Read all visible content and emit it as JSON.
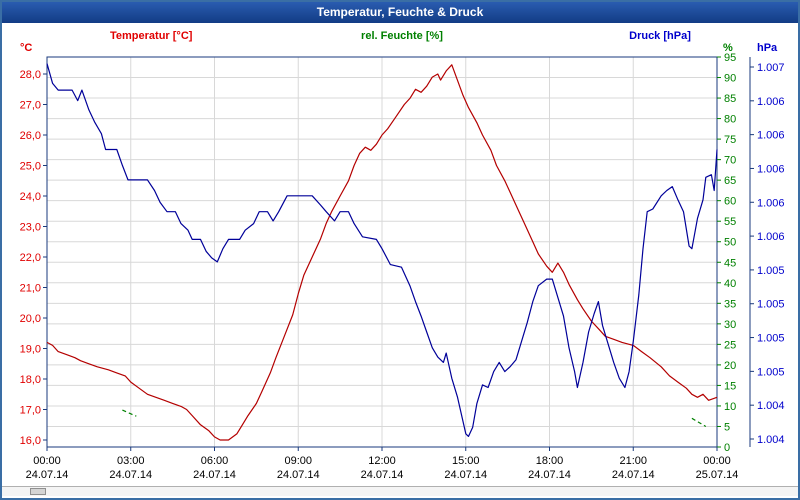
{
  "window": {
    "title": "Temperatur, Feuchte & Druck"
  },
  "header": {
    "temp_axis_label": "Temperatur [°C]",
    "humidity_axis_label": "rel. Feuchte [%]",
    "pressure_axis_label": "Druck [hPa]",
    "temp_unit": "°C",
    "humidity_unit": "%",
    "pressure_unit": "hPa"
  },
  "colors": {
    "temperature": "#b40000",
    "temperature_label": "#e00000",
    "humidity": "#008000",
    "pressure": "#000099",
    "pressure_label": "#0000cc",
    "grid": "#d8d8d8",
    "frame": "#1a3a7c",
    "tick_text": "#000000",
    "title_bar": "#1b4a9e",
    "background": "#ffffff"
  },
  "axes": {
    "x": {
      "tick_hours": [
        0,
        3,
        6,
        9,
        12,
        15,
        18,
        21,
        24
      ],
      "time_labels": [
        "00:00",
        "03:00",
        "06:00",
        "09:00",
        "12:00",
        "15:00",
        "18:00",
        "21:00",
        "00:00"
      ],
      "date_labels": [
        "24.07.14",
        "24.07.14",
        "24.07.14",
        "24.07.14",
        "24.07.14",
        "24.07.14",
        "24.07.14",
        "24.07.14",
        "25.07.14"
      ]
    },
    "temperature": {
      "unit": "°C",
      "min": 16,
      "max": 28,
      "tick_values": [
        28,
        27,
        26,
        25,
        24,
        23,
        22,
        21,
        20,
        19,
        18,
        17,
        16
      ],
      "tick_labels": [
        "28,0",
        "27,0",
        "26,0",
        "25,0",
        "24,0",
        "23,0",
        "22,0",
        "21,0",
        "20,0",
        "19,0",
        "18,0",
        "17,0",
        "16,0"
      ]
    },
    "humidity": {
      "unit": "%",
      "min": 0,
      "max": 95,
      "tick_step": 5,
      "tick_values": [
        95,
        90,
        85,
        80,
        75,
        70,
        65,
        60,
        55,
        50,
        45,
        40,
        35,
        30,
        25,
        20,
        15,
        10,
        5,
        0
      ]
    },
    "pressure": {
      "unit": "hPa",
      "tick_labels": [
        "1.007",
        "1.006",
        "1.006",
        "1.006",
        "1.006",
        "1.006",
        "1.005",
        "1.005",
        "1.005",
        "1.005",
        "1.004",
        "1.004"
      ],
      "range_hpa": [
        1004.2,
        1007.15
      ]
    }
  },
  "chart_data": {
    "type": "line",
    "title": "Temperatur, Feuchte & Druck",
    "x_unit": "hours (24.07.14 00:00 - 25.07.14 00:00)",
    "x_range": [
      0,
      24
    ],
    "grid": true,
    "series": [
      {
        "name": "Temperatur",
        "unit": "°C",
        "axis": "temperature",
        "color": "#b40000",
        "points": [
          [
            0,
            19.2
          ],
          [
            0.2,
            19.1
          ],
          [
            0.4,
            18.9
          ],
          [
            0.7,
            18.8
          ],
          [
            1,
            18.7
          ],
          [
            1.2,
            18.6
          ],
          [
            1.5,
            18.5
          ],
          [
            1.8,
            18.4
          ],
          [
            2.2,
            18.3
          ],
          [
            2.5,
            18.2
          ],
          [
            2.8,
            18.1
          ],
          [
            3,
            17.9
          ],
          [
            3.3,
            17.7
          ],
          [
            3.6,
            17.5
          ],
          [
            3.9,
            17.4
          ],
          [
            4.2,
            17.3
          ],
          [
            4.5,
            17.2
          ],
          [
            4.8,
            17.1
          ],
          [
            5,
            17
          ],
          [
            5.2,
            16.8
          ],
          [
            5.5,
            16.5
          ],
          [
            5.8,
            16.3
          ],
          [
            6,
            16.1
          ],
          [
            6.2,
            16
          ],
          [
            6.5,
            16
          ],
          [
            6.8,
            16.2
          ],
          [
            7,
            16.5
          ],
          [
            7.2,
            16.8
          ],
          [
            7.5,
            17.2
          ],
          [
            7.7,
            17.6
          ],
          [
            8,
            18.2
          ],
          [
            8.2,
            18.7
          ],
          [
            8.5,
            19.4
          ],
          [
            8.8,
            20.1
          ],
          [
            9,
            20.8
          ],
          [
            9.2,
            21.4
          ],
          [
            9.5,
            22
          ],
          [
            9.8,
            22.6
          ],
          [
            10,
            23.1
          ],
          [
            10.2,
            23.5
          ],
          [
            10.5,
            24
          ],
          [
            10.8,
            24.5
          ],
          [
            11,
            25
          ],
          [
            11.2,
            25.4
          ],
          [
            11.4,
            25.6
          ],
          [
            11.6,
            25.5
          ],
          [
            11.8,
            25.7
          ],
          [
            12,
            26
          ],
          [
            12.2,
            26.2
          ],
          [
            12.5,
            26.6
          ],
          [
            12.8,
            27
          ],
          [
            13,
            27.2
          ],
          [
            13.2,
            27.5
          ],
          [
            13.4,
            27.4
          ],
          [
            13.6,
            27.6
          ],
          [
            13.8,
            27.9
          ],
          [
            14,
            28
          ],
          [
            14.1,
            27.8
          ],
          [
            14.3,
            28.1
          ],
          [
            14.5,
            28.3
          ],
          [
            14.7,
            27.8
          ],
          [
            14.9,
            27.3
          ],
          [
            15.1,
            26.9
          ],
          [
            15.4,
            26.4
          ],
          [
            15.6,
            26
          ],
          [
            15.9,
            25.5
          ],
          [
            16.1,
            25
          ],
          [
            16.4,
            24.5
          ],
          [
            16.6,
            24.1
          ],
          [
            16.9,
            23.5
          ],
          [
            17.1,
            23.1
          ],
          [
            17.4,
            22.5
          ],
          [
            17.6,
            22.1
          ],
          [
            17.9,
            21.7
          ],
          [
            18.1,
            21.5
          ],
          [
            18.3,
            21.8
          ],
          [
            18.5,
            21.5
          ],
          [
            18.7,
            21.1
          ],
          [
            19,
            20.6
          ],
          [
            19.2,
            20.3
          ],
          [
            19.5,
            19.9
          ],
          [
            19.8,
            19.6
          ],
          [
            20,
            19.4
          ],
          [
            20.3,
            19.3
          ],
          [
            20.6,
            19.2
          ],
          [
            21,
            19.1
          ],
          [
            21.3,
            18.9
          ],
          [
            21.6,
            18.7
          ],
          [
            22,
            18.4
          ],
          [
            22.3,
            18.1
          ],
          [
            22.6,
            17.9
          ],
          [
            22.9,
            17.7
          ],
          [
            23.1,
            17.5
          ],
          [
            23.3,
            17.4
          ],
          [
            23.5,
            17.5
          ],
          [
            23.7,
            17.3
          ],
          [
            24,
            17.4
          ]
        ]
      },
      {
        "name": "Druck",
        "unit": "hPa",
        "axis": "pressure",
        "color": "#000099",
        "points": [
          [
            0,
            1007.1
          ],
          [
            0.2,
            1006.95
          ],
          [
            0.4,
            1006.9
          ],
          [
            0.9,
            1006.9
          ],
          [
            1.1,
            1006.82
          ],
          [
            1.25,
            1006.9
          ],
          [
            1.5,
            1006.75
          ],
          [
            1.7,
            1006.66
          ],
          [
            1.95,
            1006.57
          ],
          [
            2.1,
            1006.45
          ],
          [
            2.5,
            1006.45
          ],
          [
            2.7,
            1006.33
          ],
          [
            2.9,
            1006.22
          ],
          [
            3.6,
            1006.22
          ],
          [
            3.85,
            1006.14
          ],
          [
            4.05,
            1006.05
          ],
          [
            4.3,
            1005.98
          ],
          [
            4.6,
            1005.98
          ],
          [
            4.8,
            1005.89
          ],
          [
            5.05,
            1005.84
          ],
          [
            5.2,
            1005.77
          ],
          [
            5.5,
            1005.77
          ],
          [
            5.7,
            1005.68
          ],
          [
            5.9,
            1005.63
          ],
          [
            6.1,
            1005.6
          ],
          [
            6.3,
            1005.7
          ],
          [
            6.5,
            1005.77
          ],
          [
            6.9,
            1005.77
          ],
          [
            7.1,
            1005.84
          ],
          [
            7.4,
            1005.89
          ],
          [
            7.6,
            1005.98
          ],
          [
            7.9,
            1005.98
          ],
          [
            8.1,
            1005.91
          ],
          [
            8.3,
            1005.98
          ],
          [
            8.6,
            1006.1
          ],
          [
            9.5,
            1006.1
          ],
          [
            9.8,
            1006.03
          ],
          [
            10,
            1005.98
          ],
          [
            10.3,
            1005.91
          ],
          [
            10.5,
            1005.98
          ],
          [
            10.8,
            1005.98
          ],
          [
            11,
            1005.89
          ],
          [
            11.3,
            1005.79
          ],
          [
            11.8,
            1005.77
          ],
          [
            12,
            1005.7
          ],
          [
            12.3,
            1005.58
          ],
          [
            12.7,
            1005.56
          ],
          [
            13,
            1005.42
          ],
          [
            13.2,
            1005.3
          ],
          [
            13.4,
            1005.19
          ],
          [
            13.6,
            1005.07
          ],
          [
            13.8,
            1004.95
          ],
          [
            14,
            1004.88
          ],
          [
            14.2,
            1004.84
          ],
          [
            14.3,
            1004.91
          ],
          [
            14.5,
            1004.72
          ],
          [
            14.7,
            1004.58
          ],
          [
            14.85,
            1004.44
          ],
          [
            15,
            1004.3
          ],
          [
            15.1,
            1004.28
          ],
          [
            15.25,
            1004.35
          ],
          [
            15.4,
            1004.53
          ],
          [
            15.6,
            1004.67
          ],
          [
            15.8,
            1004.65
          ],
          [
            16,
            1004.77
          ],
          [
            16.2,
            1004.84
          ],
          [
            16.4,
            1004.77
          ],
          [
            16.6,
            1004.81
          ],
          [
            16.8,
            1004.86
          ],
          [
            17,
            1005
          ],
          [
            17.2,
            1005.14
          ],
          [
            17.4,
            1005.3
          ],
          [
            17.6,
            1005.42
          ],
          [
            17.9,
            1005.47
          ],
          [
            18.1,
            1005.47
          ],
          [
            18.3,
            1005.33
          ],
          [
            18.5,
            1005.19
          ],
          [
            18.7,
            1004.95
          ],
          [
            18.9,
            1004.77
          ],
          [
            19,
            1004.65
          ],
          [
            19.2,
            1004.84
          ],
          [
            19.4,
            1005.07
          ],
          [
            19.6,
            1005.21
          ],
          [
            19.75,
            1005.3
          ],
          [
            19.9,
            1005.12
          ],
          [
            20.1,
            1004.98
          ],
          [
            20.3,
            1004.84
          ],
          [
            20.5,
            1004.72
          ],
          [
            20.7,
            1004.65
          ],
          [
            20.85,
            1004.77
          ],
          [
            21,
            1005
          ],
          [
            21.2,
            1005.35
          ],
          [
            21.35,
            1005.7
          ],
          [
            21.5,
            1005.98
          ],
          [
            21.7,
            1006
          ],
          [
            22,
            1006.1
          ],
          [
            22.2,
            1006.14
          ],
          [
            22.4,
            1006.17
          ],
          [
            22.6,
            1006.07
          ],
          [
            22.8,
            1005.98
          ],
          [
            23,
            1005.72
          ],
          [
            23.1,
            1005.7
          ],
          [
            23.3,
            1005.93
          ],
          [
            23.5,
            1006.07
          ],
          [
            23.6,
            1006.24
          ],
          [
            23.8,
            1006.26
          ],
          [
            23.9,
            1006.14
          ],
          [
            24,
            1006.45
          ]
        ]
      },
      {
        "name": "rel. Feuchte",
        "unit": "%",
        "axis": "humidity",
        "color": "#008000",
        "segments": [
          [
            [
              2.7,
              9
            ],
            [
              3.2,
              7.5
            ]
          ],
          [
            [
              23.1,
              7
            ],
            [
              23.6,
              5
            ]
          ]
        ]
      }
    ]
  }
}
